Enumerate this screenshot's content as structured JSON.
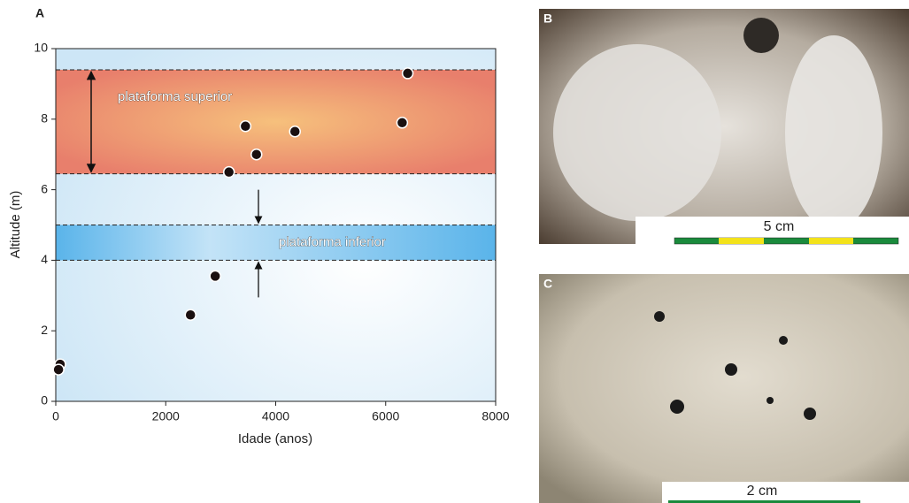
{
  "chart_data": {
    "type": "scatter",
    "panel_label": "A",
    "x_label": "Idade (anos)",
    "y_label": "Altitude (m)",
    "x": [
      6400,
      6300,
      4350,
      3450,
      3650,
      3150,
      2900,
      2450,
      80,
      50
    ],
    "y": [
      9.3,
      7.9,
      7.65,
      7.8,
      7.0,
      6.5,
      3.55,
      2.45,
      1.05,
      0.9
    ],
    "color": "#1a1010",
    "xlim": [
      0,
      8000
    ],
    "ylim": [
      0,
      10
    ],
    "xticks": [
      0,
      2000,
      4000,
      6000,
      8000
    ],
    "yticks": [
      0,
      2,
      4,
      6,
      8,
      10
    ],
    "bands": [
      {
        "label": "plataforma superior",
        "range": [
          6.45,
          9.4
        ]
      },
      {
        "label": "plataforma inferior",
        "range": [
          4,
          5
        ]
      }
    ]
  },
  "panels": [
    {
      "label": "B",
      "scale": "5 cm"
    },
    {
      "label": "C",
      "scale": "2 cm"
    }
  ]
}
